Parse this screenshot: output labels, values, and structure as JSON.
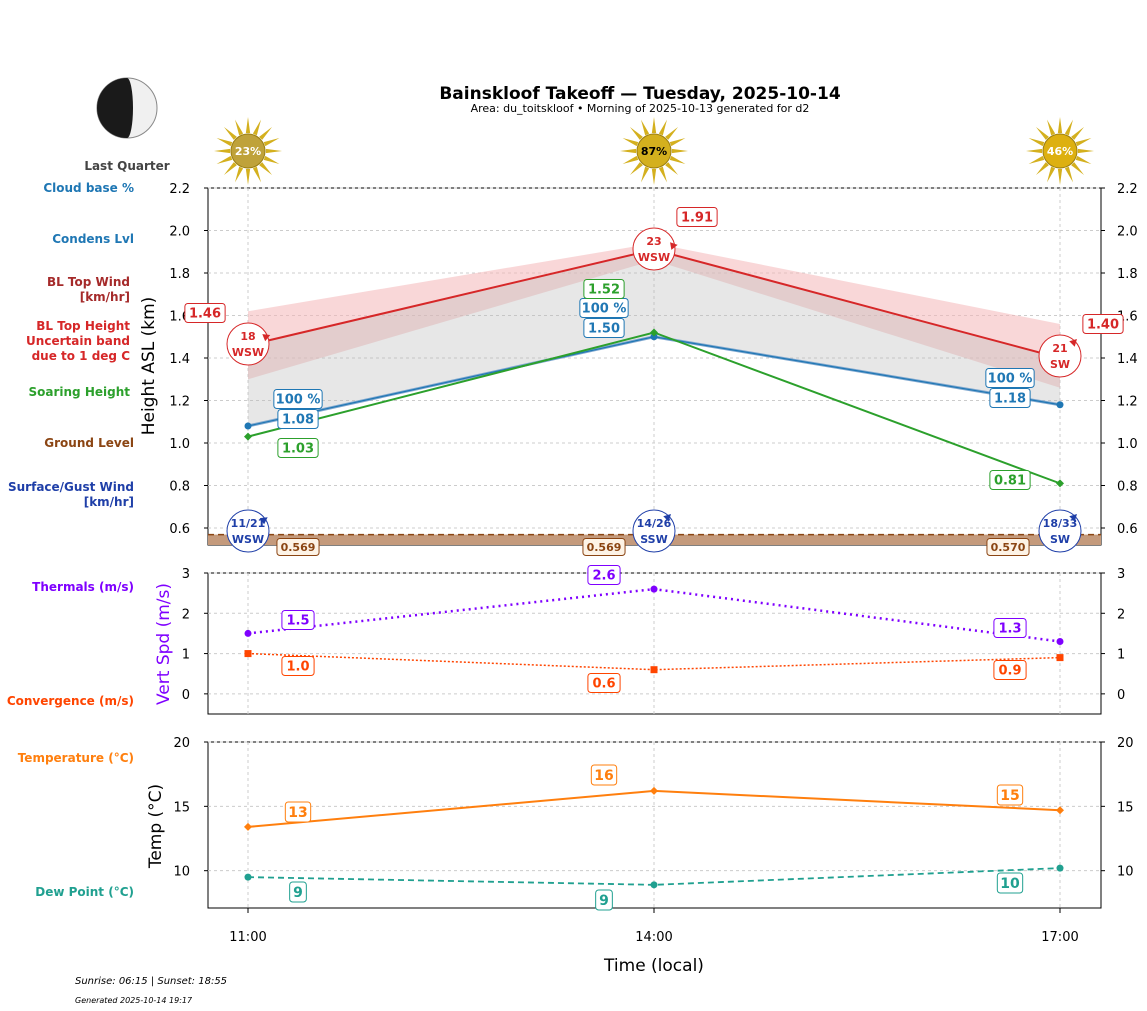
{
  "header": {
    "title": "Bainskloof Takeoff — Tuesday, 2025-10-14",
    "subtitle": "Area: du_toitskloof • Morning of 2025-10-13 generated for d2",
    "moon_phase": "Last Quarter"
  },
  "colors": {
    "cloud": "#1f77b4",
    "condens": "#1f77b4",
    "bl_top": "#d62728",
    "bl_band": "#f4b6b8",
    "soaring": "#2ca02c",
    "ground": "#8b4513",
    "ground_fill": "#c49a7c",
    "surface_wind": "#1f3fa8",
    "thermal": "#7f00ff",
    "convergence": "#ff4500",
    "temperature": "#ff7f0e",
    "dewpoint": "#20a090",
    "sun": "#d4b01e"
  },
  "side_labels": {
    "cloud_base": "Cloud base %",
    "condens": "Condens Lvl",
    "bl_wind_1": "BL Top Wind",
    "bl_wind_2": "[km/hr]",
    "bl_height_1": "BL Top Height",
    "bl_height_2": "Uncertain band",
    "bl_height_3": "due to 1 deg C",
    "soaring": "Soaring Height",
    "ground": "Ground Level",
    "surface_1": "Surface/Gust Wind",
    "surface_2": "[km/hr]",
    "thermals": "Thermals (m/s)",
    "convergence": "Convergence (m/s)",
    "temperature": "Temperature (°C)",
    "dewpoint": "Dew Point (°C)"
  },
  "footer": {
    "sun_times": "Sunrise: 06:15 | Sunset: 18:55",
    "generated": "Generated 2025-10-14 19:17"
  },
  "chart_data": [
    {
      "type": "line",
      "panel": "height",
      "ylabel": "Height ASL (km)",
      "ylim": [
        0.52,
        2.2
      ],
      "yticks": [
        "0.6",
        "0.8",
        "1.0",
        "1.2",
        "1.4",
        "1.6",
        "1.8",
        "2.0",
        "2.2"
      ],
      "x": [
        "11:00",
        "14:00",
        "17:00"
      ],
      "sun_percent": [
        "23%",
        "87%",
        "46%"
      ],
      "series": [
        {
          "name": "BL Top Height",
          "values": [
            1.46,
            1.91,
            1.4
          ],
          "labels": [
            "1.46",
            "1.91",
            "1.40"
          ],
          "band_upper": [
            1.62,
            1.94,
            1.56
          ],
          "band_lower": [
            1.3,
            1.86,
            1.26
          ]
        },
        {
          "name": "Condens Lvl",
          "values": [
            1.08,
            1.5,
            1.18
          ],
          "labels": [
            "1.08",
            "1.50",
            "1.18"
          ]
        },
        {
          "name": "Cloud base %",
          "values": [
            1.08,
            1.5,
            1.18
          ],
          "labels": [
            "100 %",
            "100 %",
            "100 %"
          ]
        },
        {
          "name": "Soaring Height",
          "values": [
            1.03,
            1.52,
            0.81
          ],
          "labels": [
            "1.03",
            "1.52",
            "0.81"
          ]
        },
        {
          "name": "Ground Level",
          "values": [
            0.569,
            0.569,
            0.57
          ],
          "labels": [
            "0.569",
            "0.569",
            "0.570"
          ]
        }
      ],
      "bl_top_wind": [
        {
          "speed": "18",
          "dir": "WSW"
        },
        {
          "speed": "23",
          "dir": "WSW"
        },
        {
          "speed": "21",
          "dir": "SW"
        }
      ],
      "surface_wind": [
        {
          "speed": "11/21",
          "dir": "WSW"
        },
        {
          "speed": "14/26",
          "dir": "SSW"
        },
        {
          "speed": "18/33",
          "dir": "SW"
        }
      ]
    },
    {
      "type": "line",
      "panel": "vertical_speed",
      "ylabel": "Vert Spd (m/s)",
      "ylim": [
        -0.5,
        3
      ],
      "yticks": [
        "0",
        "1",
        "2",
        "3"
      ],
      "x": [
        "11:00",
        "14:00",
        "17:00"
      ],
      "series": [
        {
          "name": "Thermals (m/s)",
          "values": [
            1.5,
            2.6,
            1.3
          ],
          "labels": [
            "1.5",
            "2.6",
            "1.3"
          ]
        },
        {
          "name": "Convergence (m/s)",
          "values": [
            1.0,
            0.6,
            0.9
          ],
          "labels": [
            "1.0",
            "0.6",
            "0.9"
          ]
        }
      ]
    },
    {
      "type": "line",
      "panel": "temperature",
      "ylabel": "Temp (°C)",
      "xlabel": "Time (local)",
      "ylim": [
        7.1,
        20
      ],
      "yticks": [
        "10",
        "15",
        "20"
      ],
      "x": [
        "11:00",
        "14:00",
        "17:00"
      ],
      "series": [
        {
          "name": "Temperature (°C)",
          "values": [
            13.4,
            16.2,
            14.7
          ],
          "labels": [
            "13",
            "16",
            "15"
          ]
        },
        {
          "name": "Dew Point (°C)",
          "values": [
            9.5,
            8.9,
            10.2
          ],
          "labels": [
            "9",
            "9",
            "10"
          ]
        }
      ]
    }
  ]
}
